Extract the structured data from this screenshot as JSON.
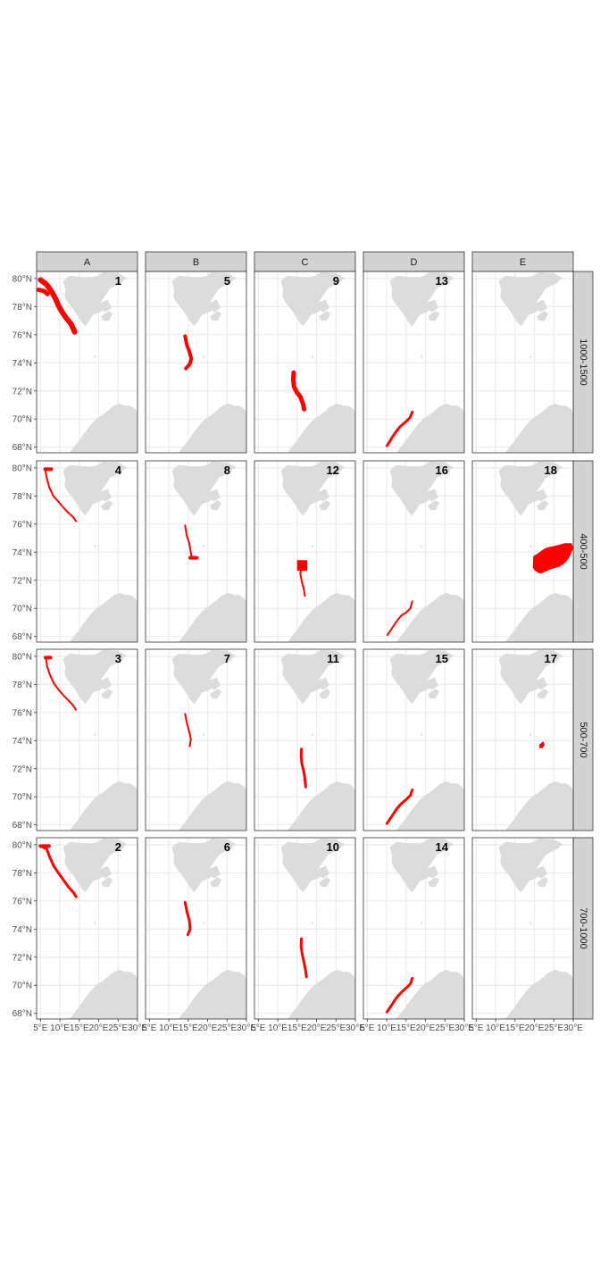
{
  "figure": {
    "columns": [
      "A",
      "B",
      "C",
      "D",
      "E"
    ],
    "rows": [
      "1000-1500",
      "400-500",
      "500-700",
      "700-1000"
    ],
    "y_ticks": [
      "80°N",
      "78°N",
      "76°N",
      "74°N",
      "72°N",
      "70°N",
      "68°N"
    ],
    "x_ticks": [
      "5°E",
      "10°E",
      "15°E",
      "20°E",
      "25°E",
      "30°E"
    ]
  },
  "map": {
    "lon_range": [
      4,
      30
    ],
    "lat_range": [
      67.6,
      80.5
    ],
    "grid_lon": [
      5,
      10,
      15,
      20,
      25,
      30
    ],
    "grid_lat": [
      68,
      70,
      72,
      74,
      76,
      78,
      80
    ],
    "land_color": "#dcdcdc",
    "track_color": "#ff0000",
    "strip_color": "#d3d3d3",
    "grid_color": "#ebebeb"
  },
  "panels": [
    {
      "row": 0,
      "col": 0,
      "id": "1"
    },
    {
      "row": 0,
      "col": 1,
      "id": "5"
    },
    {
      "row": 0,
      "col": 2,
      "id": "9"
    },
    {
      "row": 0,
      "col": 3,
      "id": "13"
    },
    {
      "row": 0,
      "col": 4,
      "id": ""
    },
    {
      "row": 1,
      "col": 0,
      "id": "4"
    },
    {
      "row": 1,
      "col": 1,
      "id": "8"
    },
    {
      "row": 1,
      "col": 2,
      "id": "12"
    },
    {
      "row": 1,
      "col": 3,
      "id": "16"
    },
    {
      "row": 1,
      "col": 4,
      "id": "18"
    },
    {
      "row": 2,
      "col": 0,
      "id": "3"
    },
    {
      "row": 2,
      "col": 1,
      "id": "7"
    },
    {
      "row": 2,
      "col": 2,
      "id": "11"
    },
    {
      "row": 2,
      "col": 3,
      "id": "15"
    },
    {
      "row": 2,
      "col": 4,
      "id": "17"
    },
    {
      "row": 3,
      "col": 0,
      "id": "2"
    },
    {
      "row": 3,
      "col": 1,
      "id": "6"
    },
    {
      "row": 3,
      "col": 2,
      "id": "10"
    },
    {
      "row": 3,
      "col": 3,
      "id": "14"
    },
    {
      "row": 3,
      "col": 4,
      "id": ""
    }
  ]
}
